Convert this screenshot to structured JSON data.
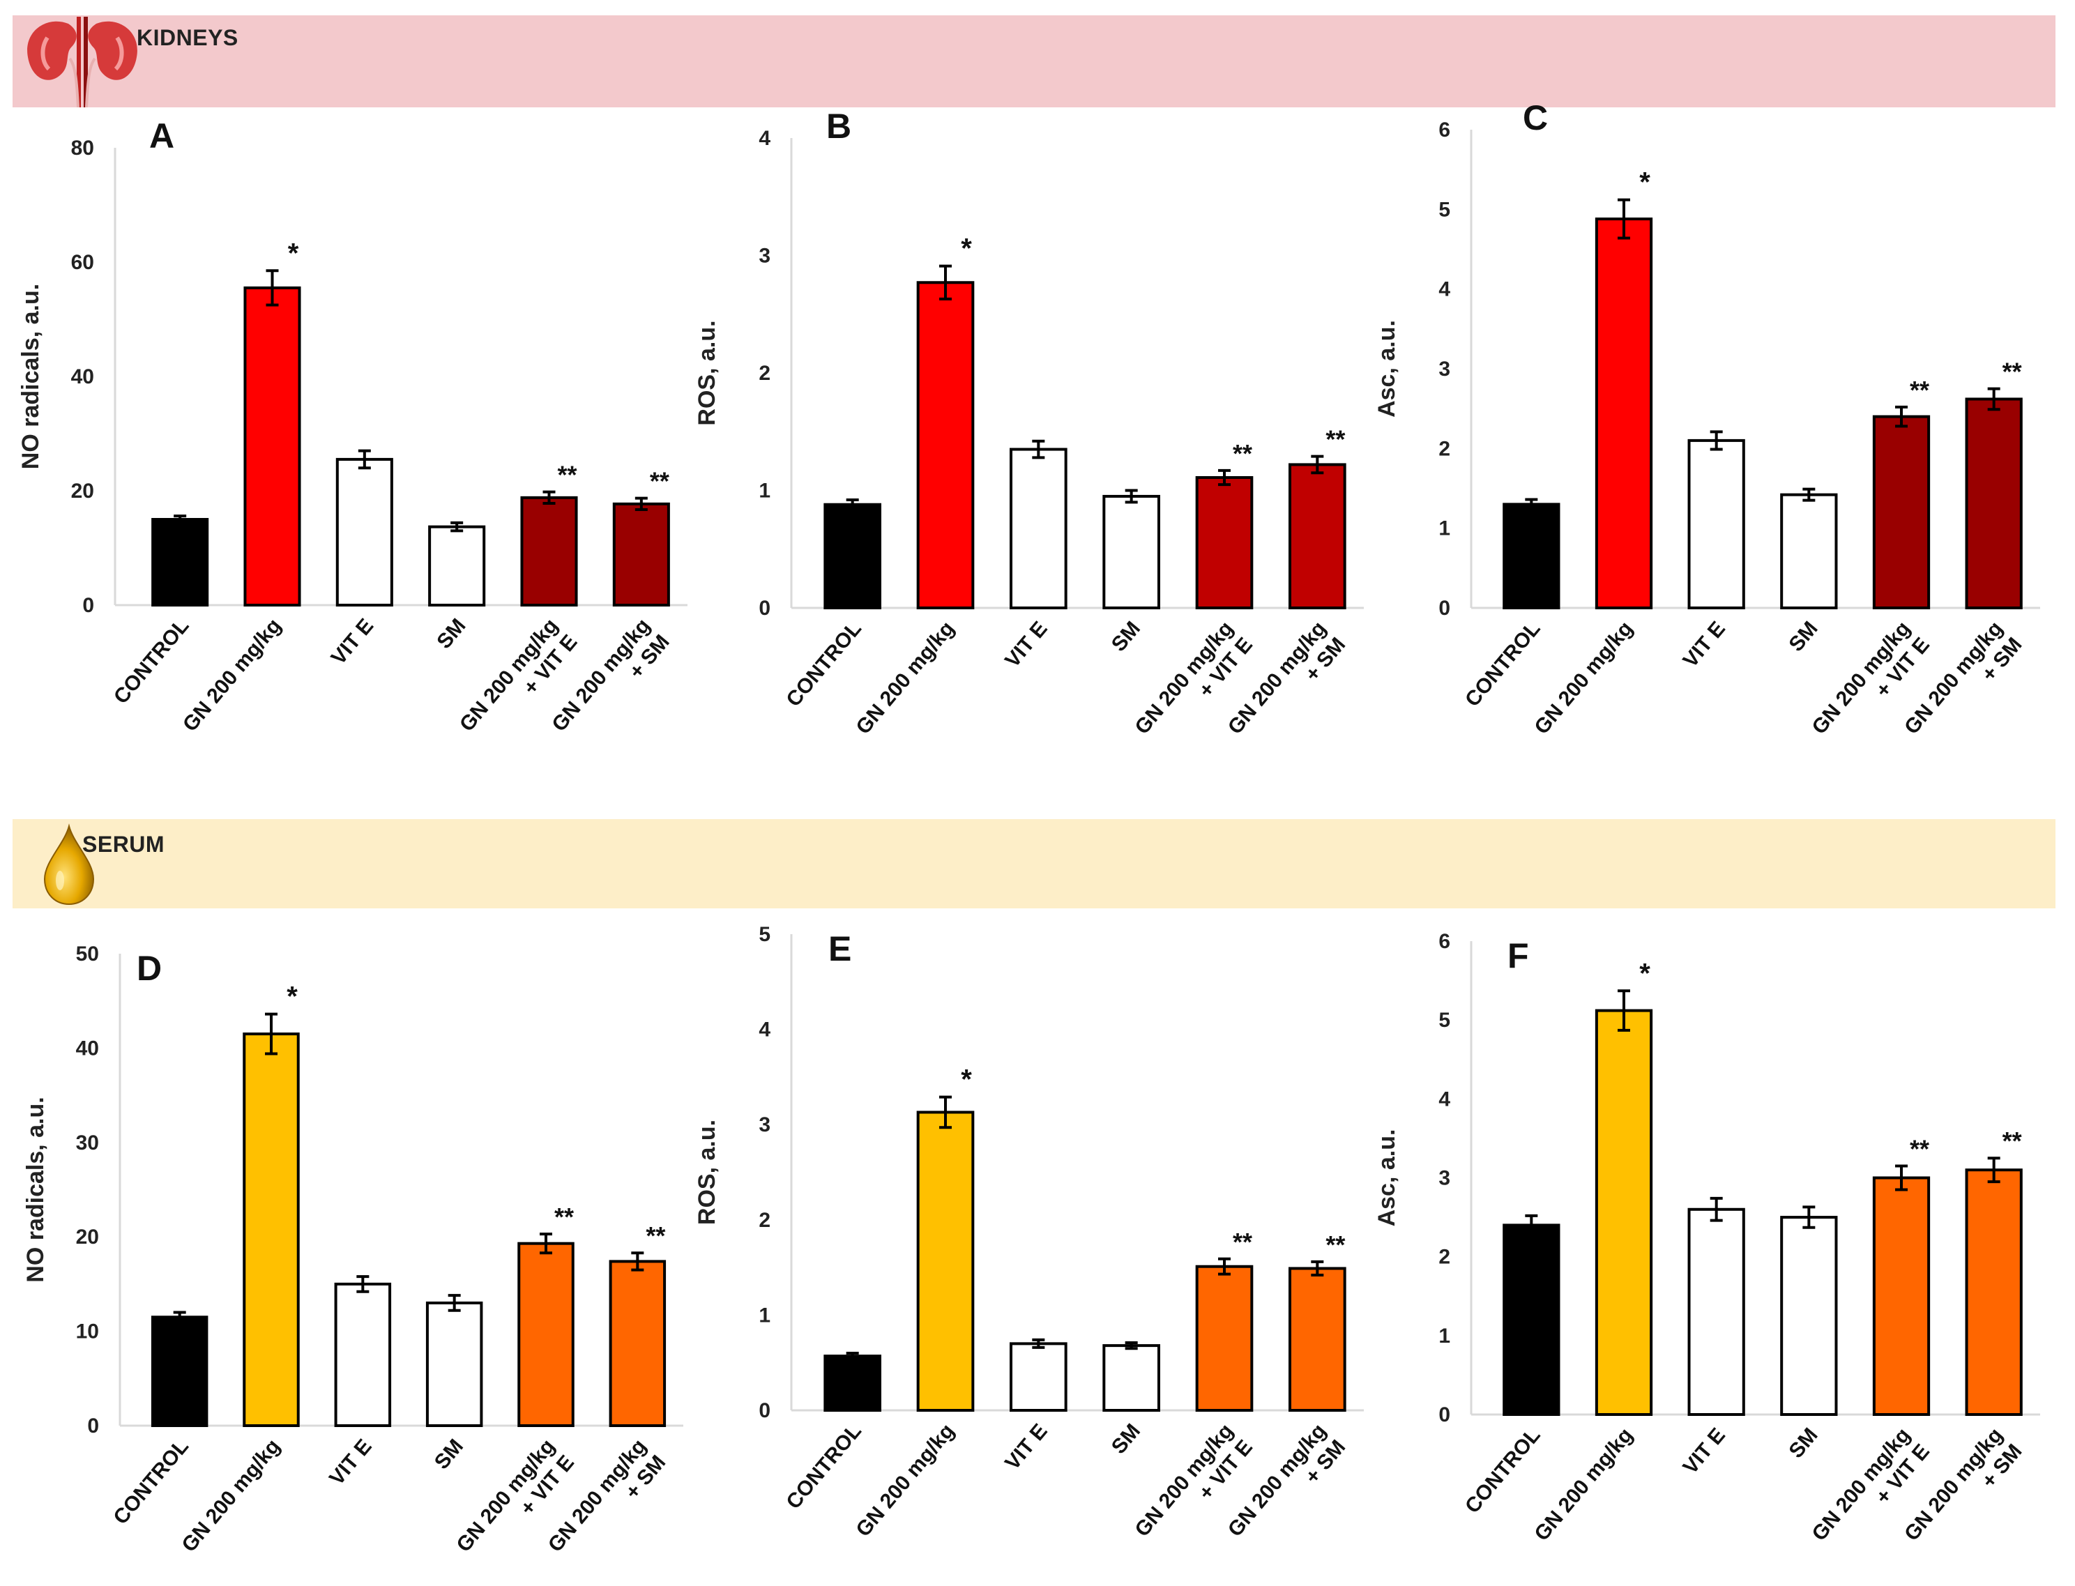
{
  "sections": {
    "kidneys": {
      "title": "KIDNEYS",
      "icon": "kidneys-icon",
      "color": "#f3c9cc"
    },
    "serum": {
      "title": "SERUM",
      "icon": "serum-drop-icon",
      "color": "#fdeec8"
    }
  },
  "chart_data": [
    {
      "panel": "A",
      "section": "kidneys",
      "type": "bar",
      "ylabel": "NO radicals,  a.u.",
      "ylim": [
        0,
        80
      ],
      "yticks": [
        "0",
        "20",
        "40",
        "60",
        "80"
      ],
      "categories": [
        "CONTROL",
        "GN 200 mg/kg",
        "VIT E",
        "SM",
        "GN 200 mg/kg|+ VIT E",
        "GN 200 mg/kg|+ SM"
      ],
      "values": [
        15,
        55.5,
        25.5,
        13.7,
        18.8,
        17.7
      ],
      "errors": [
        0.6,
        3.0,
        1.5,
        0.7,
        1.0,
        1.0
      ],
      "annotations": [
        "",
        "*",
        "",
        "",
        "**",
        "**"
      ],
      "colors": [
        "#000000",
        "#ff0000",
        "#ffffff",
        "#ffffff",
        "#990000",
        "#990000"
      ]
    },
    {
      "panel": "B",
      "section": "kidneys",
      "type": "bar",
      "ylabel": "ROS, a.u.",
      "ylim": [
        0,
        4
      ],
      "yticks": [
        "0",
        "1",
        "2",
        "3",
        "4"
      ],
      "categories": [
        "CONTROL",
        "GN 200 mg/kg",
        "VIT E",
        "SM",
        "GN 200 mg/kg|+ VIT E",
        "GN 200 mg/kg|+ SM"
      ],
      "values": [
        0.88,
        2.77,
        1.35,
        0.95,
        1.11,
        1.22
      ],
      "errors": [
        0.04,
        0.14,
        0.07,
        0.05,
        0.06,
        0.07
      ],
      "annotations": [
        "",
        "*",
        "",
        "",
        "**",
        "**"
      ],
      "colors": [
        "#000000",
        "#ff0000",
        "#ffffff",
        "#ffffff",
        "#c00000",
        "#c00000"
      ]
    },
    {
      "panel": "C",
      "section": "kidneys",
      "type": "bar",
      "ylabel": "Asc, a.u.",
      "ylim": [
        0,
        6
      ],
      "yticks": [
        "0",
        "1",
        "2",
        "3",
        "4",
        "5",
        "6"
      ],
      "categories": [
        "CONTROL",
        "GN 200 mg/kg",
        "VIT E",
        "SM",
        "GN 200 mg/kg|+ VIT E",
        "GN 200 mg/kg|+ SM"
      ],
      "values": [
        1.3,
        4.88,
        2.1,
        1.42,
        2.4,
        2.62
      ],
      "errors": [
        0.06,
        0.24,
        0.11,
        0.07,
        0.12,
        0.13
      ],
      "annotations": [
        "",
        "*",
        "",
        "",
        "**",
        "**"
      ],
      "colors": [
        "#000000",
        "#ff0000",
        "#ffffff",
        "#ffffff",
        "#990000",
        "#990000"
      ]
    },
    {
      "panel": "D",
      "section": "serum",
      "type": "bar",
      "ylabel": "NO radicals,  a.u.",
      "ylim": [
        0,
        50
      ],
      "yticks": [
        "0",
        "10",
        "20",
        "30",
        "40",
        "50"
      ],
      "categories": [
        "CONTROL",
        "GN 200 mg/kg",
        "VIT E",
        "SM",
        "GN 200 mg/kg|+ VIT E",
        "GN 200 mg/kg|+ SM"
      ],
      "values": [
        11.5,
        41.5,
        15,
        13,
        19.3,
        17.4
      ],
      "errors": [
        0.5,
        2.1,
        0.8,
        0.8,
        1.0,
        0.9
      ],
      "annotations": [
        "",
        "*",
        "",
        "",
        "**",
        "**"
      ],
      "colors": [
        "#000000",
        "#ffc000",
        "#ffffff",
        "#ffffff",
        "#ff6600",
        "#ff6600"
      ]
    },
    {
      "panel": "E",
      "section": "serum",
      "type": "bar",
      "ylabel": "ROS, a.u.",
      "ylim": [
        0,
        5
      ],
      "yticks": [
        "0",
        "1",
        "2",
        "3",
        "4",
        "5"
      ],
      "categories": [
        "CONTROL",
        "GN 200 mg/kg",
        "VIT E",
        "SM",
        "GN 200 mg/kg|+ VIT E",
        "GN 200 mg/kg|+ SM"
      ],
      "values": [
        0.57,
        3.13,
        0.7,
        0.68,
        1.51,
        1.49
      ],
      "errors": [
        0.03,
        0.16,
        0.04,
        0.03,
        0.08,
        0.07
      ],
      "annotations": [
        "",
        "*",
        "",
        "",
        "**",
        "**"
      ],
      "colors": [
        "#000000",
        "#ffc000",
        "#ffffff",
        "#ffffff",
        "#ff6600",
        "#ff6600"
      ]
    },
    {
      "panel": "F",
      "section": "serum",
      "type": "bar",
      "ylabel": "Asc, a.u.",
      "ylim": [
        0,
        6
      ],
      "yticks": [
        "0",
        "1",
        "2",
        "3",
        "4",
        "5",
        "6"
      ],
      "categories": [
        "CONTROL",
        "GN 200 mg/kg",
        "VIT E",
        "SM",
        "GN 200 mg/kg|+ VIT E",
        "GN 200 mg/kg|+ SM"
      ],
      "values": [
        2.4,
        5.12,
        2.6,
        2.5,
        3.0,
        3.1
      ],
      "errors": [
        0.12,
        0.25,
        0.14,
        0.13,
        0.15,
        0.15
      ],
      "annotations": [
        "",
        "*",
        "",
        "",
        "**",
        "**"
      ],
      "colors": [
        "#000000",
        "#ffc000",
        "#ffffff",
        "#ffffff",
        "#ff6600",
        "#ff6600"
      ]
    }
  ]
}
